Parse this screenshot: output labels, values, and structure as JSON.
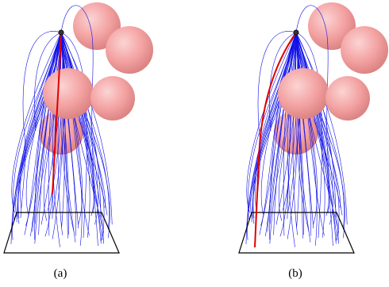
{
  "panels": [
    {
      "id": "a",
      "caption": "(a)",
      "highlight": "short"
    },
    {
      "id": "b",
      "caption": "(b)",
      "highlight": "long"
    }
  ],
  "colors": {
    "trajectories": "#1010e8",
    "highlight_path": "#e00000",
    "obstacles": "#f4a3a3",
    "obstacles_shade": "#d97f7f",
    "ground_outline": "#000000",
    "start_node": "#333333"
  }
}
